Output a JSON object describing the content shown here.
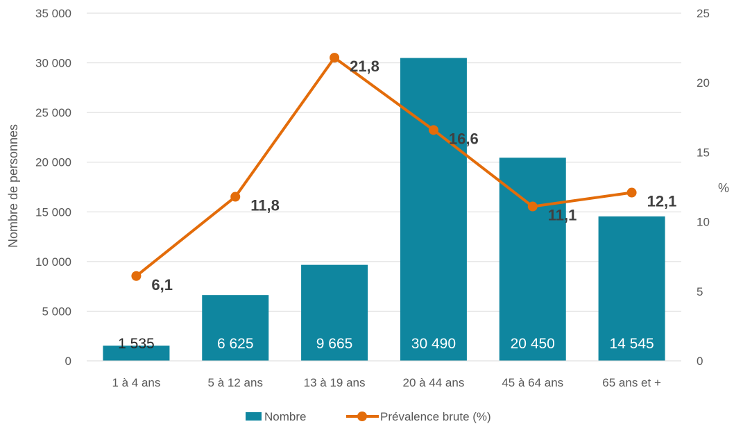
{
  "chart_data": {
    "type": "bar",
    "categories": [
      "1 à 4 ans",
      "5 à 12 ans",
      "13 à 19 ans",
      "20 à 44 ans",
      "45 à 64 ans",
      "65 ans et +"
    ],
    "series": [
      {
        "name": "Nombre",
        "type": "bar",
        "axis": "left",
        "values": [
          1535,
          6625,
          9665,
          30490,
          20450,
          14545
        ],
        "labels": [
          "1 535",
          "6 625",
          "9 665",
          "30 490",
          "20 450",
          "14 545"
        ],
        "color": "#0f869f"
      },
      {
        "name": "Prévalence brute (%)",
        "type": "line",
        "axis": "right",
        "values": [
          6.1,
          11.8,
          21.8,
          16.6,
          11.1,
          12.1
        ],
        "labels": [
          "6,1",
          "11,8",
          "21,8",
          "16,6",
          "11,1",
          "12,1"
        ],
        "color": "#e36c0a"
      }
    ],
    "ylabel": "Nombre de personnes",
    "ylabel_right": "%",
    "ylim": [
      0,
      35000
    ],
    "ylim_right": [
      0,
      25
    ],
    "yticks": [
      "0",
      "5 000",
      "10 000",
      "15 000",
      "20 000",
      "25 000",
      "30 000",
      "35 000"
    ],
    "yticks_right": [
      "0",
      "5",
      "10",
      "15",
      "20",
      "25"
    ],
    "grid": true,
    "legend_position": "bottom"
  }
}
